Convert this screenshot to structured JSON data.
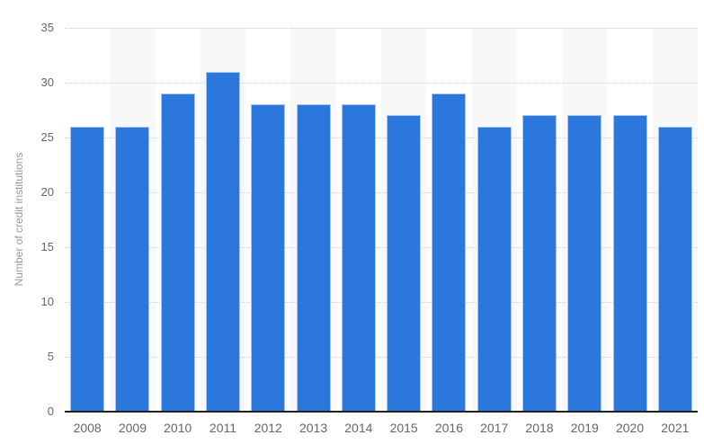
{
  "chart_data": {
    "type": "bar",
    "title": "",
    "xlabel": "",
    "ylabel": "Number of credit institutions",
    "categories": [
      "2008",
      "2009",
      "2010",
      "2011",
      "2012",
      "2013",
      "2014",
      "2015",
      "2016",
      "2017",
      "2018",
      "2019",
      "2020",
      "2021"
    ],
    "values": [
      26,
      26,
      29,
      31,
      28,
      28,
      28,
      27,
      29,
      26,
      27,
      27,
      27,
      26
    ],
    "ylim": [
      0,
      35
    ],
    "ytick_step": 5,
    "ytick_labels": [
      "0",
      "5",
      "10",
      "15",
      "20",
      "25",
      "30",
      "35"
    ],
    "grid": "horizontal-dotted",
    "legend": "none",
    "alternating_column_bands": "odd columns shaded"
  },
  "colors": {
    "bar": "#2b77dc",
    "bar_border": "#a8c6ee",
    "band": "#f8f8f8",
    "gridline": "#cfcfcf",
    "axis_line": "#222222",
    "tick_label": "#666666",
    "axis_title": "#999999",
    "background": "#ffffff"
  }
}
